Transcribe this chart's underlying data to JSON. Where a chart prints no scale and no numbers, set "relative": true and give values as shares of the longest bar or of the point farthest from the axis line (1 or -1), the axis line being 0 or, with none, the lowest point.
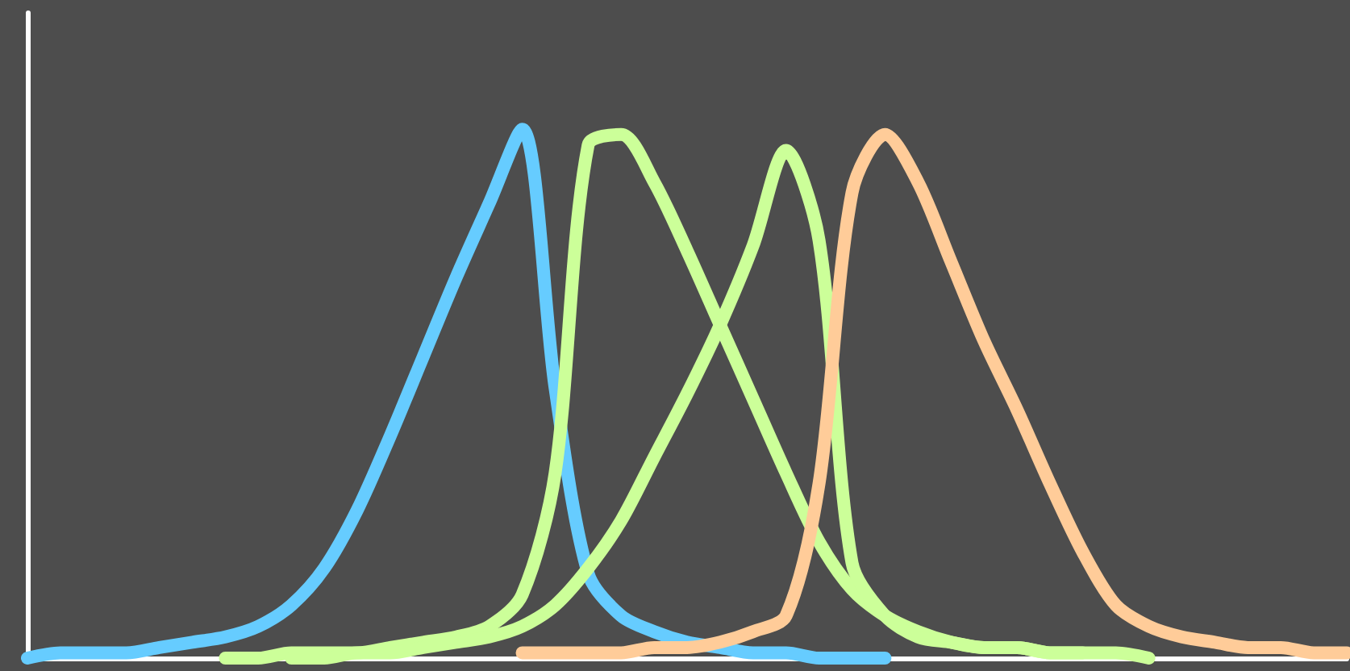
{
  "chart_data": {
    "type": "line",
    "relative": true,
    "marker": "none",
    "line_style": "solid",
    "categories": [
      null,
      null,
      null,
      null,
      null,
      null,
      null,
      null,
      null,
      null,
      null,
      null,
      null,
      null,
      null,
      null,
      null,
      null,
      null,
      null,
      null,
      null,
      null,
      null,
      null,
      null,
      null,
      null,
      null,
      null,
      null,
      null,
      null,
      null,
      null,
      null,
      null,
      null,
      null,
      null,
      null
    ],
    "series": [
      {
        "color": "#66ccff",
        "values": [
          0,
          0.01,
          0.01,
          0.01,
          0.02,
          0.03,
          0.04,
          0.06,
          0.1,
          0.17,
          0.28,
          0.42,
          0.57,
          0.72,
          0.86,
          1.0,
          0.51,
          0.16,
          0.08,
          0.05,
          0.03,
          0.02,
          0.01,
          0.01,
          0,
          0,
          0,
          null,
          null,
          null,
          null,
          null,
          null,
          null,
          null,
          null,
          null,
          null,
          null,
          null,
          null
        ]
      },
      {
        "color": "#ccff99",
        "values": [
          null,
          null,
          null,
          null,
          null,
          null,
          0,
          0,
          0.01,
          0.01,
          0.01,
          0.02,
          0.03,
          0.04,
          0.06,
          0.12,
          0.35,
          0.97,
          0.99,
          0.9,
          0.77,
          0.63,
          0.49,
          0.35,
          0.22,
          0.13,
          0.08,
          0.05,
          0.03,
          0.02,
          0.02,
          0.01,
          0.01,
          0.01,
          0,
          null,
          null,
          null,
          null,
          null,
          null
        ]
      },
      {
        "color": "#ccff99",
        "values": [
          null,
          null,
          null,
          null,
          null,
          null,
          null,
          null,
          0,
          0,
          0.01,
          0.01,
          0.02,
          0.03,
          0.04,
          0.06,
          0.1,
          0.17,
          0.26,
          0.38,
          0.5,
          0.63,
          0.78,
          0.96,
          0.79,
          0.18,
          0.08,
          0.04,
          0.03,
          0.02,
          0.02,
          0.01,
          0.01,
          null,
          null,
          null,
          null,
          null,
          null,
          null,
          null
        ]
      },
      {
        "color": "#ffcc99",
        "values": [
          null,
          null,
          null,
          null,
          null,
          null,
          null,
          null,
          null,
          null,
          null,
          null,
          null,
          null,
          null,
          0.01,
          0.01,
          0.01,
          0.01,
          0.02,
          0.02,
          0.03,
          0.05,
          0.08,
          0.33,
          0.88,
          0.99,
          0.9,
          0.75,
          0.6,
          0.47,
          0.33,
          0.2,
          0.1,
          0.06,
          0.04,
          0.03,
          0.02,
          0.02,
          0.01,
          0.01
        ]
      }
    ]
  }
}
